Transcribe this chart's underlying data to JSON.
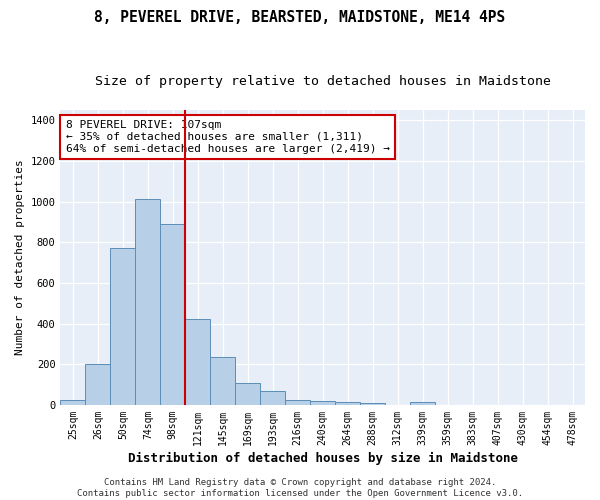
{
  "title": "8, PEVEREL DRIVE, BEARSTED, MAIDSTONE, ME14 4PS",
  "subtitle": "Size of property relative to detached houses in Maidstone",
  "xlabel": "Distribution of detached houses by size in Maidstone",
  "ylabel": "Number of detached properties",
  "bar_color": "#b8cfe8",
  "bar_edge_color": "#5b8db8",
  "background_color": "#e8eef7",
  "fig_background_color": "#ffffff",
  "grid_color": "#ffffff",
  "categories": [
    "25sqm",
    "26sqm",
    "50sqm",
    "74sqm",
    "98sqm",
    "121sqm",
    "145sqm",
    "169sqm",
    "193sqm",
    "216sqm",
    "240sqm",
    "264sqm",
    "288sqm",
    "312sqm",
    "339sqm",
    "359sqm",
    "383sqm",
    "407sqm",
    "430sqm",
    "454sqm",
    "478sqm"
  ],
  "values": [
    22,
    200,
    770,
    1010,
    890,
    420,
    235,
    108,
    68,
    25,
    20,
    12,
    8,
    0,
    12,
    0,
    0,
    0,
    0,
    0,
    0
  ],
  "vline_x": 4.0,
  "vline_color": "#cc0000",
  "annotation_text": "8 PEVEREL DRIVE: 107sqm\n← 35% of detached houses are smaller (1,311)\n64% of semi-detached houses are larger (2,419) →",
  "annotation_box_color": "#ffffff",
  "annotation_box_edge_color": "#cc0000",
  "ylim": [
    0,
    1450
  ],
  "yticks": [
    0,
    200,
    400,
    600,
    800,
    1000,
    1200,
    1400
  ],
  "footer": "Contains HM Land Registry data © Crown copyright and database right 2024.\nContains public sector information licensed under the Open Government Licence v3.0.",
  "title_fontsize": 10.5,
  "subtitle_fontsize": 9.5,
  "xlabel_fontsize": 9,
  "ylabel_fontsize": 8,
  "tick_fontsize": 7,
  "annotation_fontsize": 8,
  "footer_fontsize": 6.5
}
